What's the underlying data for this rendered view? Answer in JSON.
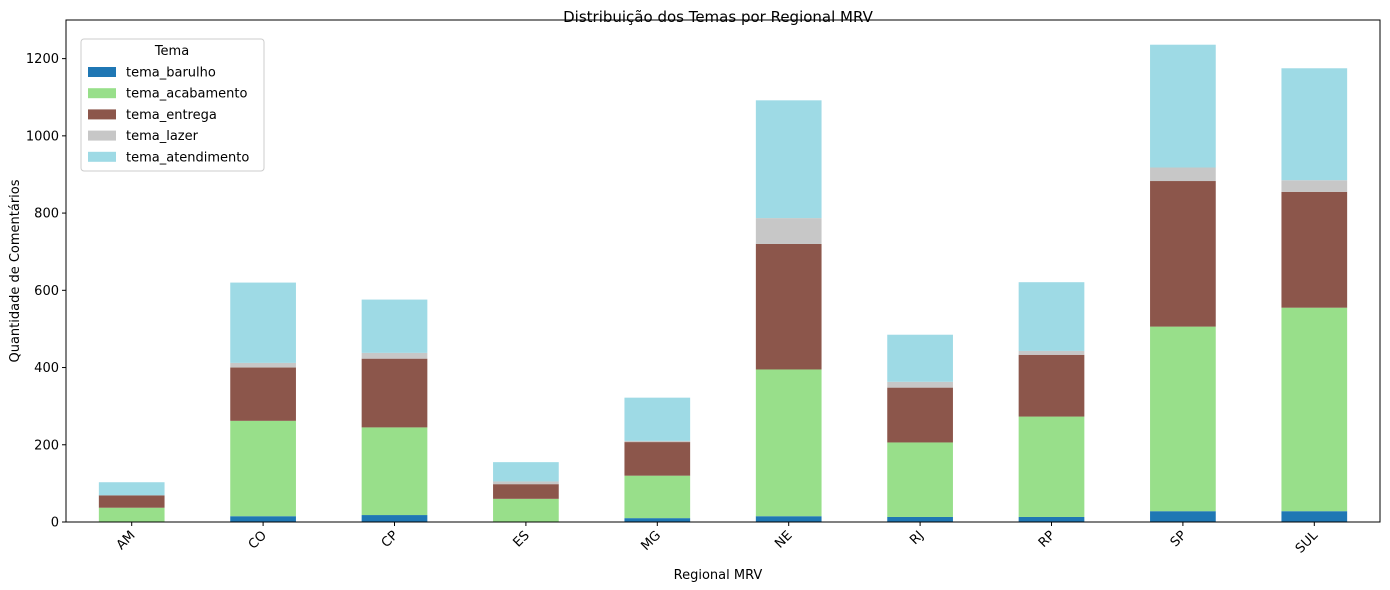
{
  "chart_data": {
    "type": "bar",
    "stacked": true,
    "title": "Distribuição dos Temas por Regional MRV",
    "xlabel": "Regional MRV",
    "ylabel": "Quantidade de Comentários",
    "ylim": [
      0,
      1300
    ],
    "yticks": [
      0,
      200,
      400,
      600,
      800,
      1000,
      1200
    ],
    "categories": [
      "AM",
      "CO",
      "CP",
      "ES",
      "MG",
      "NE",
      "RJ",
      "RP",
      "SP",
      "SUL"
    ],
    "legend_title": "Tema",
    "legend_position": "top-left",
    "grid": false,
    "series": [
      {
        "name": "tema_barulho",
        "color": "#1f77b4",
        "values": [
          0,
          15,
          18,
          0,
          10,
          15,
          13,
          13,
          28,
          28
        ]
      },
      {
        "name": "tema_acabamento",
        "color": "#98df8a",
        "values": [
          37,
          247,
          227,
          60,
          110,
          380,
          193,
          260,
          478,
          527
        ]
      },
      {
        "name": "tema_entrega",
        "color": "#8c564b",
        "values": [
          32,
          138,
          178,
          38,
          87,
          325,
          142,
          160,
          377,
          300
        ]
      },
      {
        "name": "tema_lazer",
        "color": "#c7c7c7",
        "values": [
          0,
          12,
          15,
          7,
          3,
          67,
          15,
          10,
          35,
          30
        ]
      },
      {
        "name": "tema_atendimento",
        "color": "#9edae5",
        "values": [
          34,
          208,
          138,
          50,
          112,
          305,
          122,
          178,
          318,
          290
        ]
      }
    ]
  }
}
